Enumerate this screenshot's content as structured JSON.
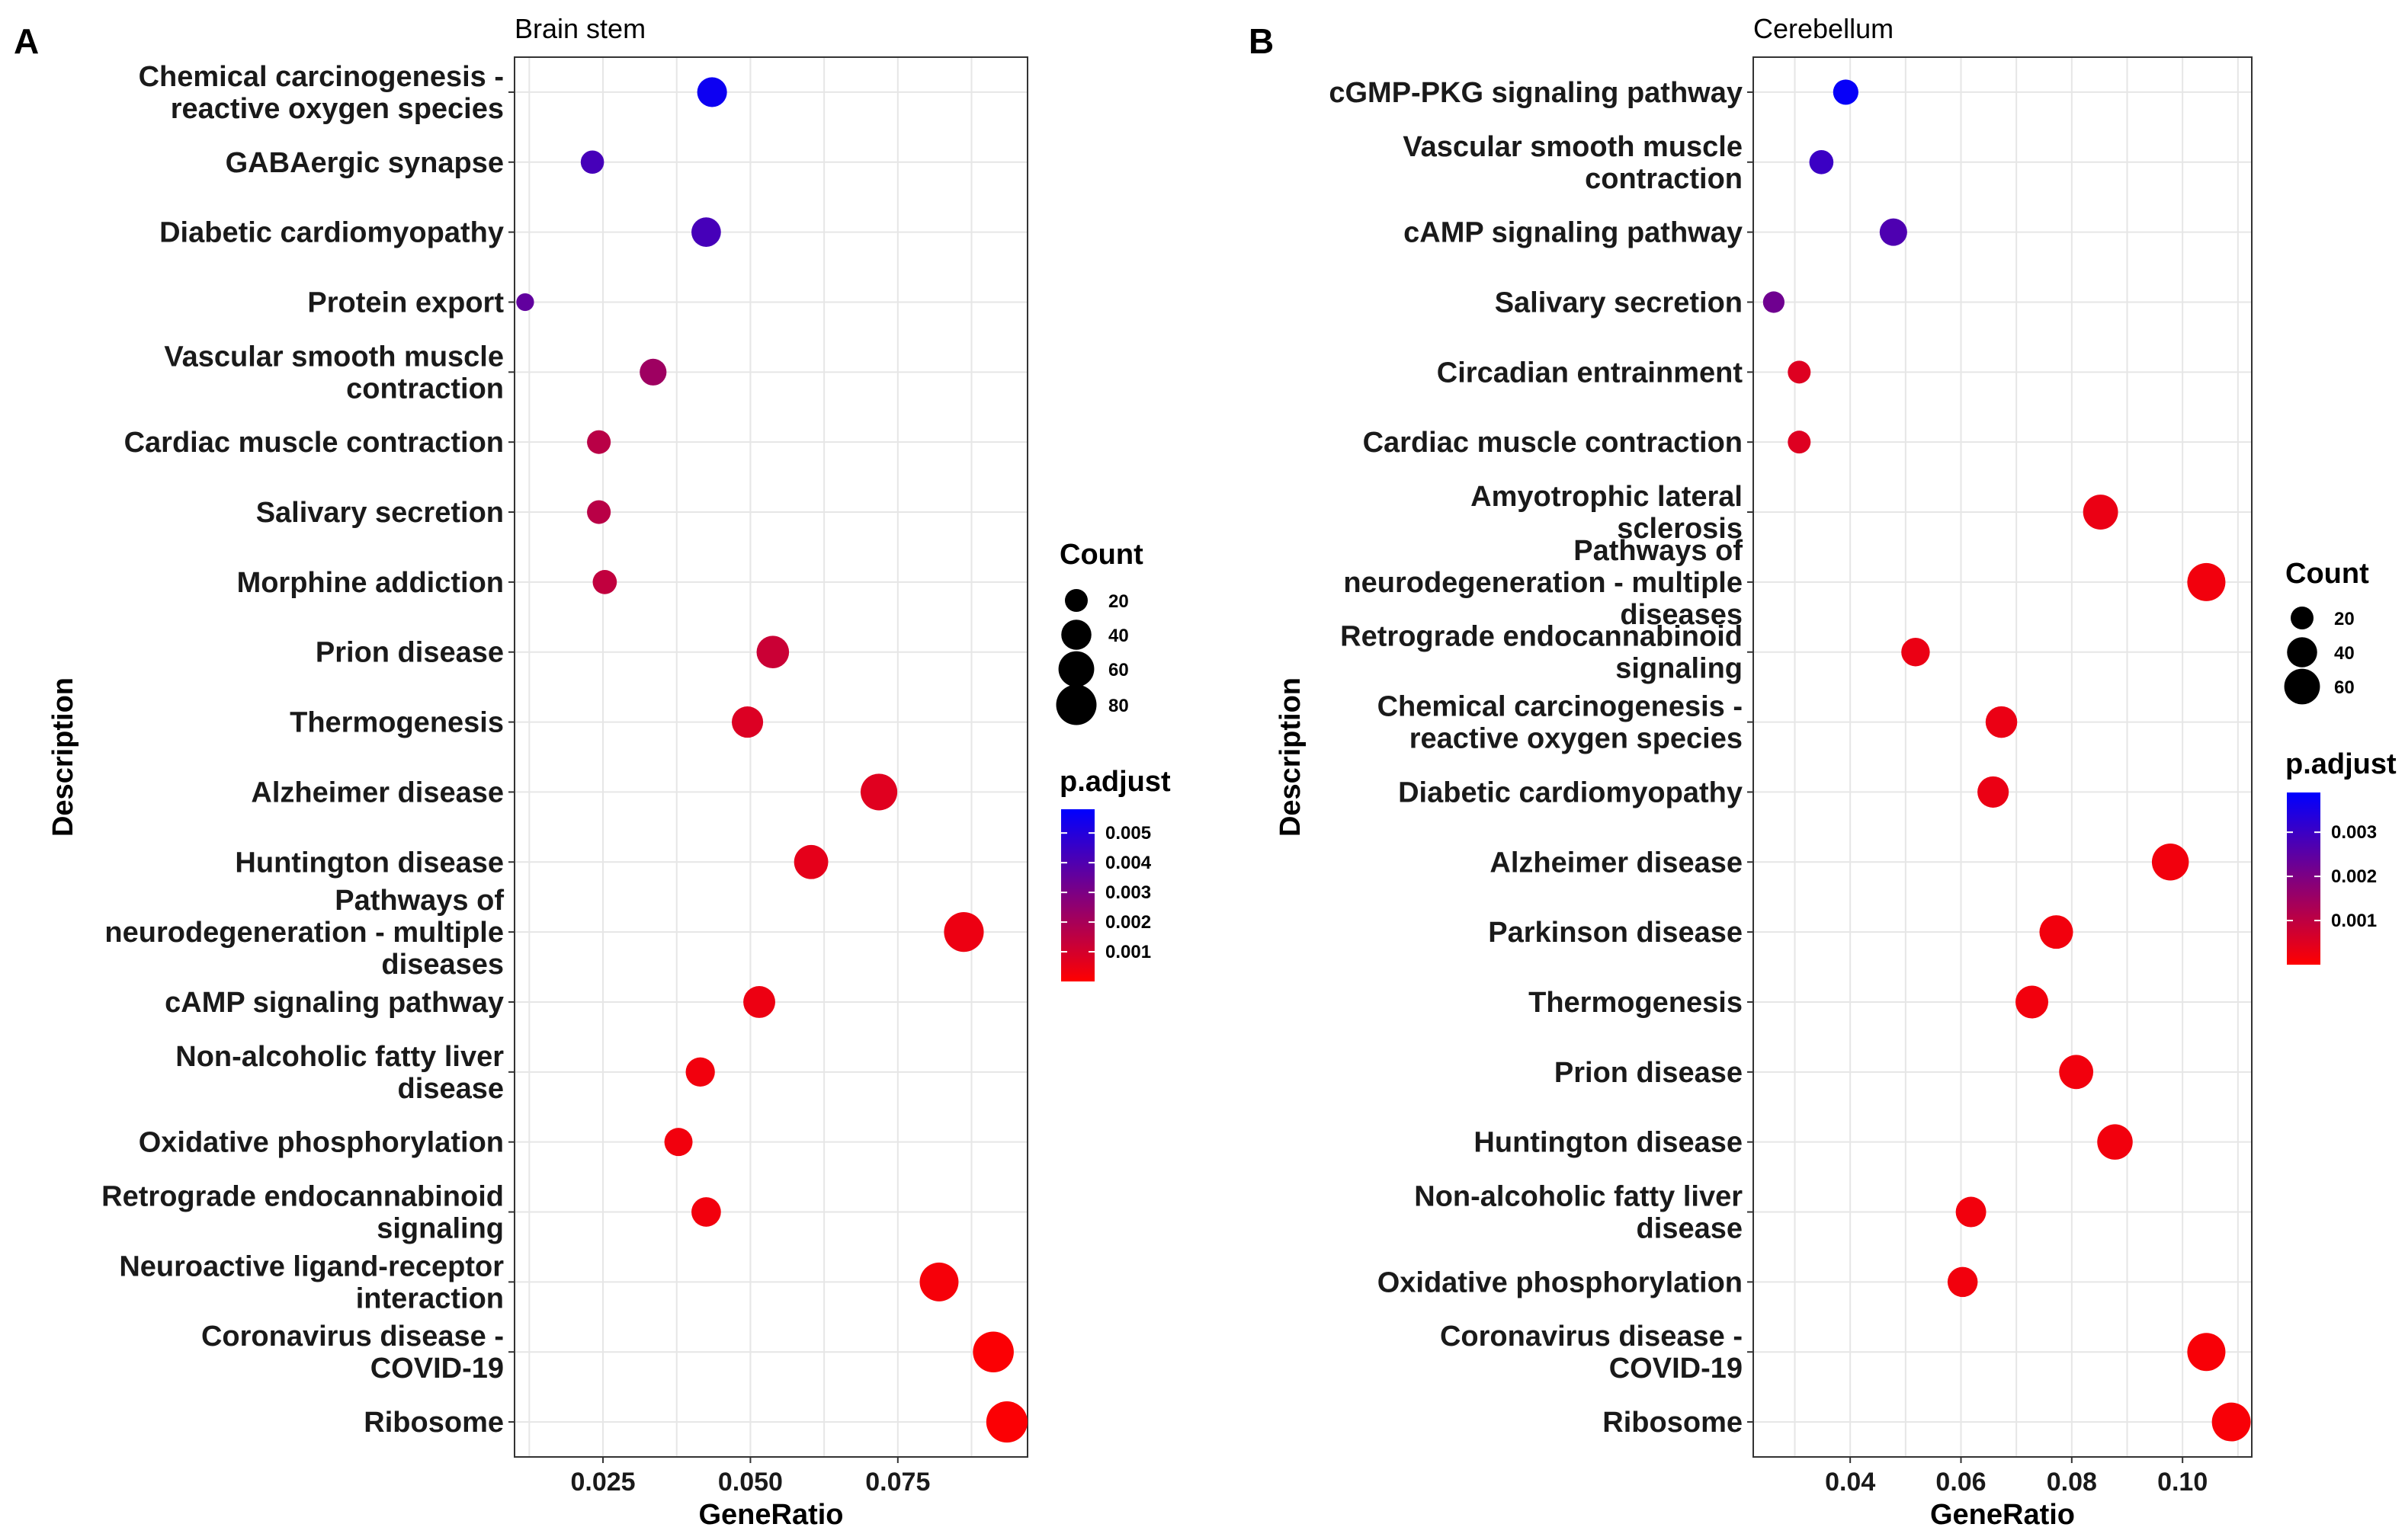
{
  "chart_data": [
    {
      "panel": "A",
      "type": "scatter",
      "title": "Brain stem",
      "xlabel": "GeneRatio",
      "ylabel": "Description",
      "xlim": [
        0.01,
        0.097
      ],
      "xticks": [
        0.025,
        0.05,
        0.075
      ],
      "xtick_labels": [
        "0.025",
        "0.050",
        "0.075"
      ],
      "categories": [
        [
          "Chemical carcinogenesis -",
          "reactive oxygen species"
        ],
        [
          "GABAergic synapse"
        ],
        [
          "Diabetic cardiomyopathy"
        ],
        [
          "Protein export"
        ],
        [
          "Vascular smooth muscle",
          "contraction"
        ],
        [
          "Cardiac muscle contraction"
        ],
        [
          "Salivary secretion"
        ],
        [
          "Morphine addiction"
        ],
        [
          "Prion disease"
        ],
        [
          "Thermogenesis"
        ],
        [
          "Alzheimer disease"
        ],
        [
          "Huntington disease"
        ],
        [
          "Pathways of",
          "neurodegeneration - multiple",
          "diseases"
        ],
        [
          "cAMP signaling pathway"
        ],
        [
          "Non-alcoholic fatty liver",
          "disease"
        ],
        [
          "Oxidative phosphorylation"
        ],
        [
          "Retrograde endocannabinoid",
          "signaling"
        ],
        [
          "Neuroactive ligand-receptor",
          "interaction"
        ],
        [
          "Coronavirus disease -",
          "COVID-19"
        ],
        [
          "Ribosome"
        ]
      ],
      "gene_ratio": [
        0.0435,
        0.0232,
        0.0425,
        0.0118,
        0.0335,
        0.0243,
        0.0243,
        0.0253,
        0.0538,
        0.0495,
        0.0718,
        0.0603,
        0.0862,
        0.0515,
        0.0415,
        0.0378,
        0.0425,
        0.082,
        0.0912,
        0.0935
      ],
      "count": [
        39,
        21,
        38,
        10,
        30,
        22,
        22,
        23,
        48,
        44,
        64,
        54,
        77,
        46,
        37,
        34,
        38,
        73,
        82,
        84
      ],
      "p_adjust": [
        0.0055,
        0.0042,
        0.0042,
        0.0036,
        0.0022,
        0.0016,
        0.0016,
        0.0014,
        0.0012,
        0.0008,
        0.0007,
        0.0006,
        0.0004,
        0.0004,
        0.0003,
        0.0003,
        0.0003,
        0.0002,
        0.0001,
        0.0001
      ],
      "legend": {
        "size_title": "Count",
        "size_values": [
          20,
          40,
          60,
          80
        ],
        "size_labels": [
          "20",
          "40",
          "60",
          "80"
        ],
        "color_title": "p.adjust",
        "color_range": [
          0.0,
          0.0058
        ],
        "color_ticks": [
          0.005,
          0.004,
          0.003,
          0.002,
          0.001
        ],
        "color_labels": [
          "0.005",
          "0.004",
          "0.003",
          "0.002",
          "0.001"
        ]
      }
    },
    {
      "panel": "B",
      "type": "scatter",
      "title": "Cerebellum",
      "xlabel": "GeneRatio",
      "ylabel": "Description",
      "xlim": [
        0.0225,
        0.1125
      ],
      "xticks": [
        0.04,
        0.06,
        0.08,
        0.1
      ],
      "xtick_labels": [
        "0.04",
        "0.06",
        "0.08",
        "0.10"
      ],
      "categories": [
        [
          "cGMP-PKG signaling pathway"
        ],
        [
          "Vascular smooth muscle",
          "contraction"
        ],
        [
          "cAMP signaling pathway"
        ],
        [
          "Salivary secretion"
        ],
        [
          "Circadian entrainment"
        ],
        [
          "Cardiac muscle contraction"
        ],
        [
          "Amyotrophic lateral",
          "sclerosis"
        ],
        [
          "Pathways of",
          "neurodegeneration - multiple",
          "diseases"
        ],
        [
          "Retrograde endocannabinoid",
          "signaling"
        ],
        [
          "Chemical carcinogenesis -",
          "reactive oxygen species"
        ],
        [
          "Diabetic cardiomyopathy"
        ],
        [
          "Alzheimer disease"
        ],
        [
          "Parkinson disease"
        ],
        [
          "Thermogenesis"
        ],
        [
          "Prion disease"
        ],
        [
          "Huntington disease"
        ],
        [
          "Non-alcoholic fatty liver",
          "disease"
        ],
        [
          "Oxidative phosphorylation"
        ],
        [
          "Coronavirus disease -",
          "COVID-19"
        ],
        [
          "Ribosome"
        ]
      ],
      "gene_ratio": [
        0.0392,
        0.0348,
        0.0478,
        0.0262,
        0.0308,
        0.0308,
        0.0852,
        0.1043,
        0.0518,
        0.0673,
        0.0658,
        0.0978,
        0.0772,
        0.0728,
        0.0808,
        0.0878,
        0.0618,
        0.0603,
        0.1043,
        0.1088
      ],
      "count": [
        26,
        23,
        32,
        17,
        20,
        20,
        57,
        70,
        35,
        45,
        44,
        65,
        52,
        49,
        54,
        59,
        41,
        40,
        70,
        73
      ],
      "p_adjust": [
        0.0038,
        0.003,
        0.0027,
        0.0022,
        0.0005,
        0.0005,
        0.0003,
        0.0002,
        0.0003,
        0.0003,
        0.0003,
        0.0002,
        0.0002,
        0.0002,
        0.0002,
        0.0002,
        0.0002,
        0.0002,
        0.0001,
        0.0001
      ],
      "legend": {
        "size_title": "Count",
        "size_values": [
          20,
          40,
          60
        ],
        "size_labels": [
          "20",
          "40",
          "60"
        ],
        "color_title": "p.adjust",
        "color_range": [
          0.0,
          0.0039
        ],
        "color_ticks": [
          0.003,
          0.002,
          0.001
        ],
        "color_labels": [
          "0.003",
          "0.002",
          "0.001"
        ]
      }
    }
  ],
  "colors": {
    "low": "#ff0000",
    "high": "#0000ff",
    "grid": "#e6e6e6",
    "frame": "#333333"
  }
}
